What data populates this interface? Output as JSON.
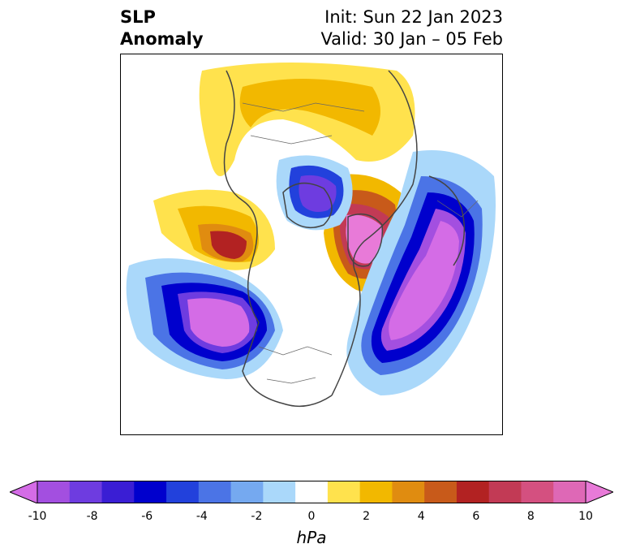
{
  "title": {
    "left_line1": "SLP",
    "left_line2": "Anomaly",
    "right_line1": "Init: Sun 22 Jan 2023",
    "right_line2": "Valid: 30 Jan – 05 Feb"
  },
  "colorbar": {
    "label": "hPa",
    "ticks": [
      "-10",
      "-8",
      "-6",
      "-4",
      "-2",
      "0",
      "2",
      "4",
      "6",
      "8",
      "10"
    ],
    "colors": [
      "#d46ce6",
      "#a34fe0",
      "#6e3ce0",
      "#3a1ed4",
      "#0000cd",
      "#2241dc",
      "#4b74e6",
      "#75a9f0",
      "#aad8fa",
      "#ffffff",
      "#ffe24d",
      "#f2b800",
      "#e08c10",
      "#c85a1a",
      "#b22222",
      "#c23a55",
      "#d45080",
      "#de68b6",
      "#e87ad8"
    ],
    "extend": "both"
  }
}
